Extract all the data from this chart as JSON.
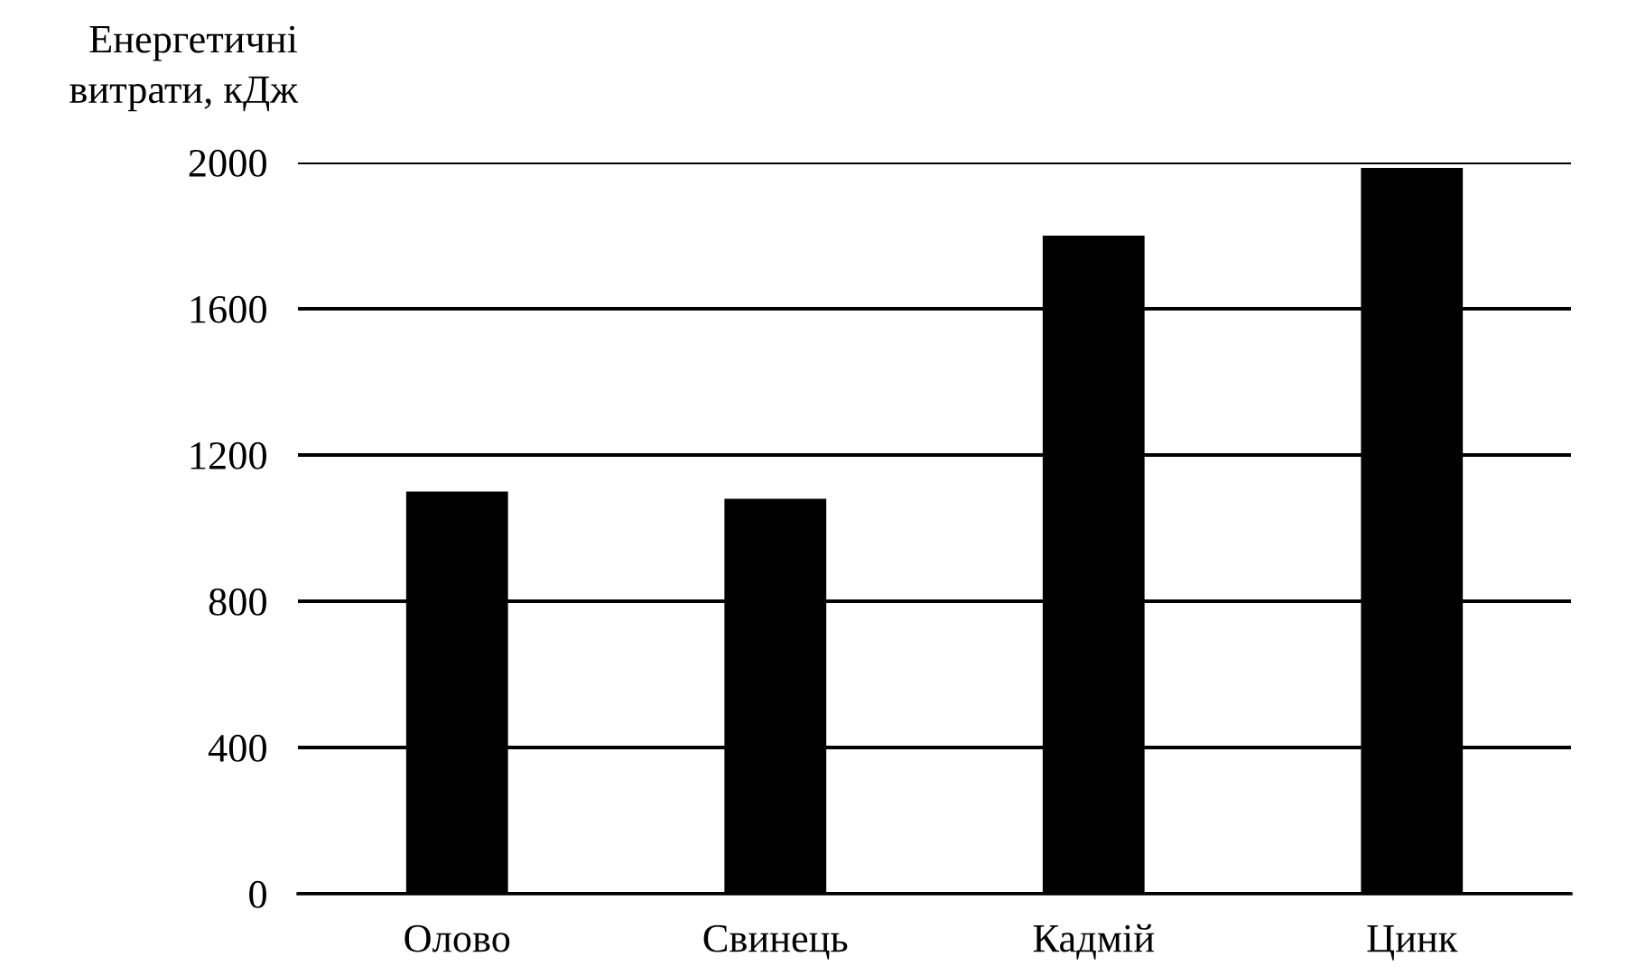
{
  "chart_data": {
    "type": "bar",
    "ylabel": "Енергетичні\nвитрати, кДж",
    "categories": [
      "Олово",
      "Свинець",
      "Кадмій",
      "Цинк"
    ],
    "values": [
      1100,
      1080,
      1800,
      1985
    ],
    "color": "#000000",
    "ylim": [
      0,
      2000
    ],
    "yticks": [
      0,
      400,
      800,
      1200,
      1600,
      2000
    ],
    "grid": "y"
  }
}
